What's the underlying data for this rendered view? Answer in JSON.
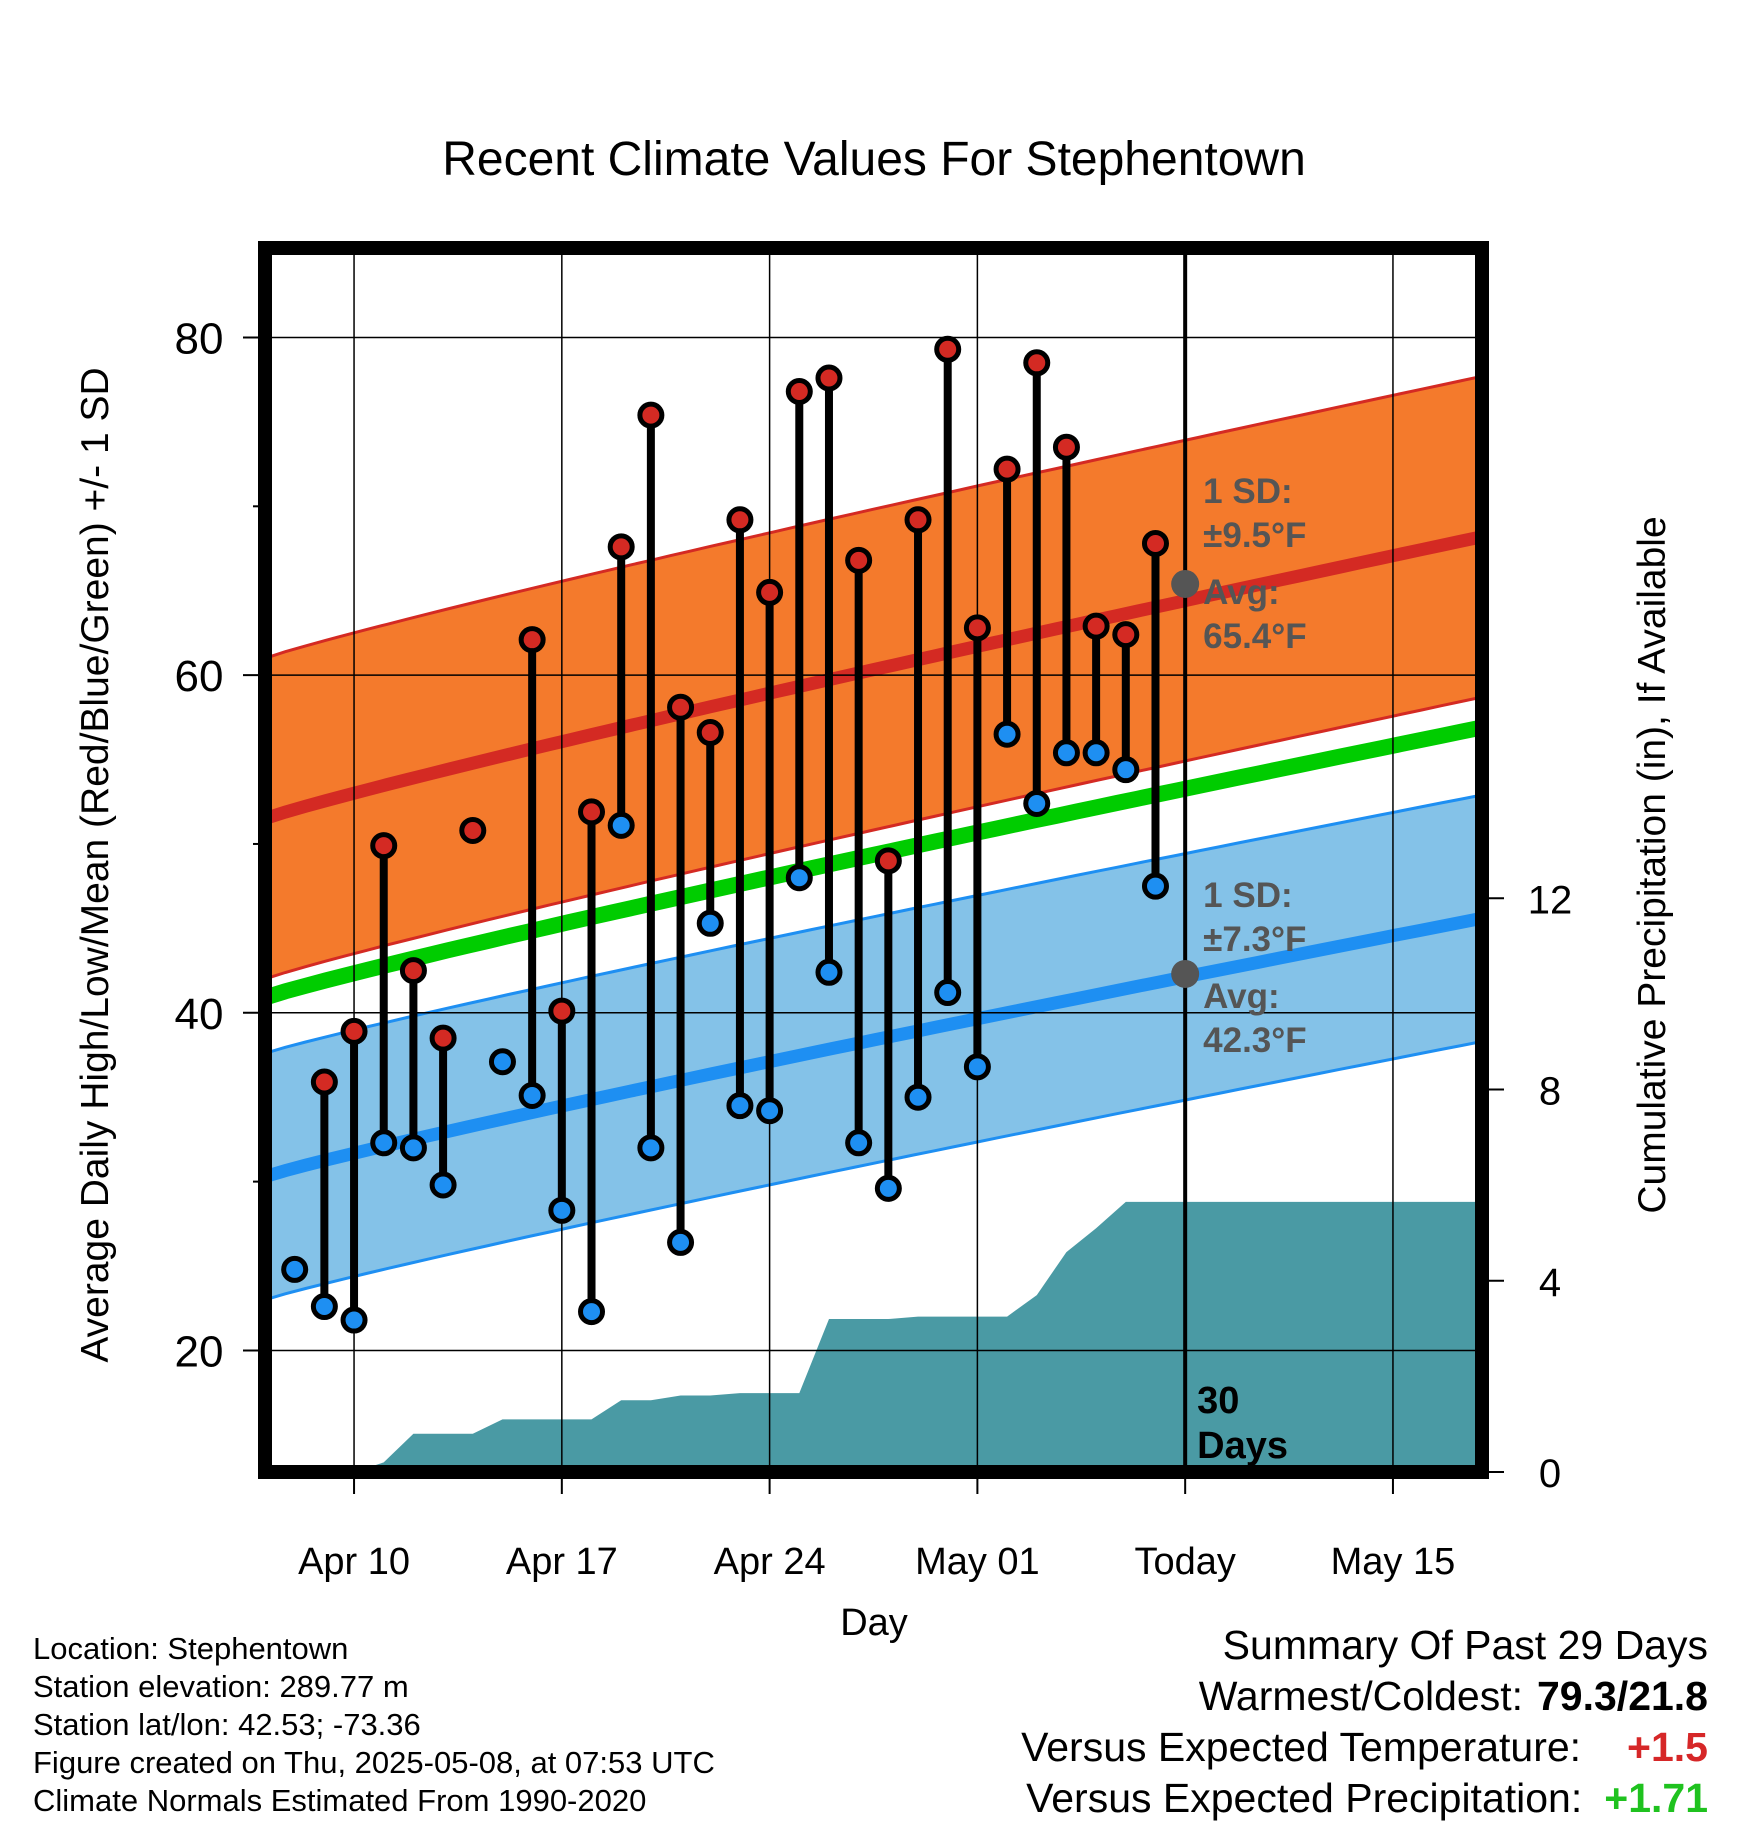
{
  "chart_data": {
    "type": "line",
    "title": "Recent Climate Values For Stephentown",
    "xlabel": "Day",
    "ylabel": "Average Daily High/Low/Mean (Red/Blue/Green) +/- 1 SD",
    "y2label": "Cumulative Precipitation (in), If Available",
    "ylim": [
      12.8,
      85.3
    ],
    "y2lim": [
      0,
      25.6
    ],
    "x_range": [
      "2025-04-07",
      "2025-05-18"
    ],
    "x_ticks": [
      {
        "date": "2025-04-10",
        "label": "Apr 10"
      },
      {
        "date": "2025-04-17",
        "label": "Apr 17"
      },
      {
        "date": "2025-04-24",
        "label": "Apr 24"
      },
      {
        "date": "2025-05-01",
        "label": "May 01"
      },
      {
        "date": "2025-05-08",
        "label": "Today"
      },
      {
        "date": "2025-05-15",
        "label": "May 15"
      }
    ],
    "y_ticks": [
      20,
      40,
      60,
      80
    ],
    "y2_ticks": [
      0,
      4,
      8,
      12
    ],
    "grid": true,
    "today": "2025-05-08",
    "today_label": [
      "30",
      "Days"
    ],
    "normals": {
      "dates": [
        "2025-04-07",
        "2025-05-18"
      ],
      "high_mean": [
        51.5,
        68.2
      ],
      "high_sd": 9.5,
      "low_mean": [
        30.3,
        45.6
      ],
      "low_sd": 7.3,
      "mean": [
        40.9,
        56.9
      ]
    },
    "annotations": {
      "high": {
        "line1": "1 SD:",
        "line2": "±9.5°F",
        "line3": "Avg:",
        "line4": "65.4°F",
        "value": 65.4
      },
      "low": {
        "line1": "1 SD:",
        "line2": "±7.3°F",
        "line3": "Avg:",
        "line4": "42.3°F",
        "value": 42.3
      }
    },
    "series": [
      {
        "name": "High",
        "dates": [
          "2025-04-09",
          "2025-04-10",
          "2025-04-11",
          "2025-04-12",
          "2025-04-13",
          "2025-04-14",
          "2025-04-16",
          "2025-04-17",
          "2025-04-18",
          "2025-04-19",
          "2025-04-20",
          "2025-04-21",
          "2025-04-22",
          "2025-04-23",
          "2025-04-24",
          "2025-04-25",
          "2025-04-26",
          "2025-04-27",
          "2025-04-28",
          "2025-04-29",
          "2025-04-30",
          "2025-05-01",
          "2025-05-02",
          "2025-05-03",
          "2025-05-04",
          "2025-05-05",
          "2025-05-06",
          "2025-05-07"
        ],
        "values": [
          35.9,
          38.9,
          49.9,
          42.5,
          38.5,
          50.8,
          62.1,
          40.1,
          51.9,
          67.6,
          75.4,
          58.1,
          56.6,
          69.2,
          64.9,
          76.8,
          77.6,
          66.8,
          49.0,
          69.2,
          79.3,
          62.8,
          72.2,
          78.5,
          73.5,
          62.9,
          62.4,
          67.8
        ]
      },
      {
        "name": "Low",
        "dates": [
          "2025-04-08",
          "2025-04-09",
          "2025-04-10",
          "2025-04-11",
          "2025-04-12",
          "2025-04-13",
          "2025-04-15",
          "2025-04-16",
          "2025-04-17",
          "2025-04-18",
          "2025-04-19",
          "2025-04-20",
          "2025-04-21",
          "2025-04-22",
          "2025-04-23",
          "2025-04-24",
          "2025-04-25",
          "2025-04-26",
          "2025-04-27",
          "2025-04-28",
          "2025-04-29",
          "2025-04-30",
          "2025-05-01",
          "2025-05-02",
          "2025-05-03",
          "2025-05-04",
          "2025-05-05",
          "2025-05-06",
          "2025-05-07"
        ],
        "values": [
          24.8,
          22.6,
          21.8,
          32.3,
          32.0,
          29.8,
          37.1,
          35.1,
          28.3,
          22.3,
          51.1,
          32.0,
          26.4,
          45.3,
          34.5,
          34.2,
          48.0,
          42.4,
          32.3,
          29.6,
          35.0,
          41.2,
          36.8,
          56.5,
          52.4,
          55.4,
          55.4,
          54.4,
          47.5
        ]
      },
      {
        "name": "Precipitation",
        "dates": [
          "2025-04-10",
          "2025-04-11",
          "2025-04-12",
          "2025-04-13",
          "2025-04-14",
          "2025-04-15",
          "2025-04-16",
          "2025-04-17",
          "2025-04-18",
          "2025-04-19",
          "2025-04-20",
          "2025-04-21",
          "2025-04-22",
          "2025-04-23",
          "2025-04-24",
          "2025-04-25",
          "2025-04-26",
          "2025-04-27",
          "2025-04-28",
          "2025-04-29",
          "2025-04-30",
          "2025-05-01",
          "2025-05-02",
          "2025-05-03",
          "2025-05-04",
          "2025-05-05",
          "2025-05-06",
          "2025-05-18"
        ],
        "values": [
          0.0,
          0.2,
          0.8,
          0.8,
          0.8,
          1.1,
          1.1,
          1.1,
          1.1,
          1.5,
          1.5,
          1.6,
          1.6,
          1.65,
          1.65,
          1.65,
          3.2,
          3.2,
          3.2,
          3.25,
          3.25,
          3.25,
          3.25,
          3.7,
          4.6,
          5.1,
          5.65,
          5.65
        ]
      }
    ]
  },
  "footer": {
    "location": "Location: Stephentown",
    "elevation": "Station elevation: 289.77 m",
    "latlon": "Station lat/lon: 42.53; -73.36",
    "created": "Figure created on Thu, 2025-05-08, at 07:53 UTC",
    "normals": "Climate Normals Estimated From 1990-2020"
  },
  "summary": {
    "title": "Summary Of Past 29 Days",
    "warmest_label": "Warmest/Coldest:",
    "warmest_value": "79.3/21.8",
    "temp_label": "Versus Expected Temperature:",
    "temp_value": "+1.5",
    "precip_label": "Versus Expected Precipitation:",
    "precip_value": "+1.71",
    "temp_color": "#d62728",
    "precip_color": "#1fc21f"
  },
  "colors": {
    "high_band": "#f47a2c",
    "high_line": "#d42a23",
    "low_band": "#84c2e8",
    "low_line": "#1e8ff2",
    "mean_line": "#00cc00",
    "precip": "#4a9aa4",
    "annotation": "#555555"
  }
}
